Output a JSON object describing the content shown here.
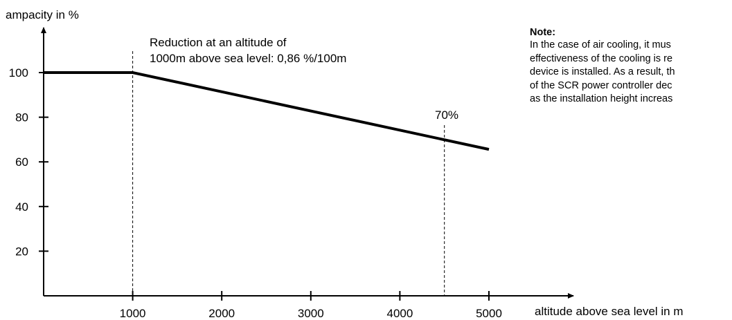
{
  "chart_data": {
    "type": "line",
    "ylabel": "ampacity in %",
    "xlabel": "altitude above sea level in m",
    "xlim": [
      0,
      5000
    ],
    "ylim": [
      0,
      100
    ],
    "x_ticks": [
      "1000",
      "2000",
      "3000",
      "4000",
      "5000"
    ],
    "y_ticks": [
      "20",
      "40",
      "60",
      "80",
      "100"
    ],
    "grid": false,
    "series": [
      {
        "x": [
          0,
          1000,
          5000
        ],
        "y": [
          100,
          100,
          65.6
        ]
      }
    ],
    "reference_lines": [
      {
        "x": 1000
      },
      {
        "x": 4500
      }
    ],
    "annotations": {
      "reduction_line1": "Reduction at an altitude of",
      "reduction_line2": "1000m above sea level: 0,86 %/100m",
      "marker_70": "70%"
    }
  },
  "note": {
    "title": "Note:",
    "lines": [
      "In the case of air cooling, it mus",
      "effectiveness of the cooling is re",
      "device is installed. As a result, th",
      "of the SCR power controller dec",
      "as the installation height increas"
    ]
  }
}
